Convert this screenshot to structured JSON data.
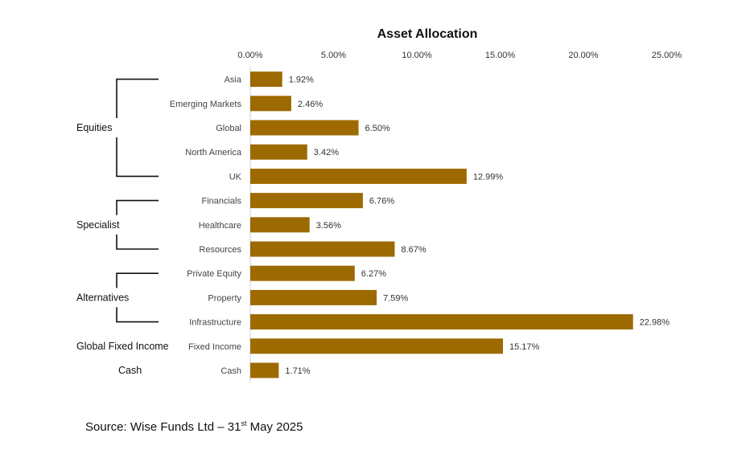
{
  "chart_data": {
    "type": "bar",
    "orientation": "horizontal",
    "title": "Asset Allocation",
    "categories": [
      "Asia",
      "Emerging Markets",
      "Global",
      "North America",
      "UK",
      "Financials",
      "Healthcare",
      "Resources",
      "Private Equity",
      "Property",
      "Infrastructure",
      "Fixed Income",
      "Cash"
    ],
    "values": [
      1.92,
      2.46,
      6.5,
      3.42,
      12.99,
      6.76,
      3.56,
      8.67,
      6.27,
      7.59,
      22.98,
      15.17,
      1.71
    ],
    "value_labels": [
      "1.92%",
      "2.46%",
      "6.50%",
      "3.42%",
      "12.99%",
      "6.76%",
      "3.56%",
      "8.67%",
      "6.27%",
      "7.59%",
      "22.98%",
      "15.17%",
      "1.71%"
    ],
    "xlim": [
      0,
      25
    ],
    "x_ticks": [
      "0.00%",
      "5.00%",
      "10.00%",
      "15.00%",
      "20.00%",
      "25.00%"
    ],
    "x_axis_position": "top",
    "grid": false,
    "bar_color": "#9C6A00",
    "groups": [
      {
        "label": "Equities",
        "first": 0,
        "last": 4,
        "bracket": true
      },
      {
        "label": "Specialist",
        "first": 5,
        "last": 7,
        "bracket": true
      },
      {
        "label": "Alternatives",
        "first": 8,
        "last": 10,
        "bracket": true
      },
      {
        "label": "Global Fixed Income",
        "first": 11,
        "last": 11,
        "bracket": false
      },
      {
        "label": "Cash",
        "first": 12,
        "last": 12,
        "bracket": false
      }
    ]
  },
  "source": {
    "prefix": "Source: Wise Funds Ltd – 31",
    "sup": "st",
    "suffix": " May 2025"
  }
}
